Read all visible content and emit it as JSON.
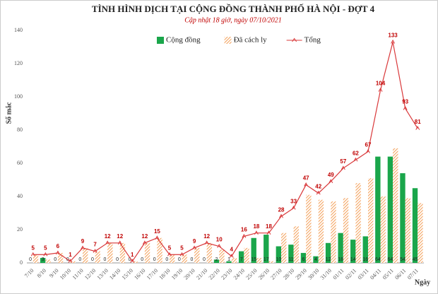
{
  "chart_data": {
    "type": "bar",
    "title": "TÌNH HÌNH DỊCH TẠI CỘNG ĐỒNG THÀNH PHỐ HÀ NỘI - ĐỢT 4",
    "subtitle": "Cập nhật 18 giờ, ngày 07/10/2021",
    "y_label": "Số mắc",
    "x_label": "Ngày",
    "categories": [
      "7/10",
      "8/10",
      "9/10",
      "10/10",
      "11/10",
      "12/10",
      "13/10",
      "14/10",
      "15/10",
      "16/10",
      "17/10",
      "18/10",
      "19/10",
      "20/10",
      "21/10",
      "22/10",
      "23/10",
      "24/10",
      "25/10",
      "26/10",
      "27/10",
      "28/10",
      "29/10",
      "30/10",
      "31/10",
      "01/11",
      "02/11",
      "03/11",
      "04/11",
      "05/11",
      "06/11",
      "07/11"
    ],
    "series": [
      {
        "name": "Cộng đồng",
        "type": "bar",
        "style": "solid",
        "color": "#1aa64b",
        "values": [
          0,
          3,
          0,
          0,
          0,
          0,
          0,
          0,
          0,
          0,
          0,
          0,
          0,
          0,
          0,
          2,
          1,
          7,
          15,
          17,
          10,
          11,
          6,
          4,
          12,
          18,
          14,
          16,
          64,
          64,
          54,
          45
        ]
      },
      {
        "name": "Đã cách ly",
        "type": "bar",
        "style": "hatch",
        "color": "#f4a460",
        "values": [
          5,
          2,
          6,
          1,
          9,
          7,
          12,
          12,
          1,
          12,
          15,
          5,
          5,
          9,
          12,
          8,
          3,
          9,
          3,
          1,
          18,
          22,
          41,
          38,
          37,
          39,
          48,
          51,
          40,
          69,
          39,
          36
        ]
      },
      {
        "name": "Tổng",
        "type": "line",
        "color": "#d9383a",
        "values": [
          5,
          5,
          6,
          1,
          9,
          7,
          12,
          12,
          1,
          12,
          15,
          5,
          5,
          9,
          12,
          10,
          4,
          16,
          18,
          18,
          28,
          33,
          47,
          42,
          49,
          57,
          62,
          67,
          104,
          133,
          93,
          81
        ]
      }
    ],
    "ylim": [
      0,
      140
    ],
    "yticks": [
      0,
      20,
      40,
      60,
      80,
      100,
      120,
      140
    ],
    "grid": false
  }
}
